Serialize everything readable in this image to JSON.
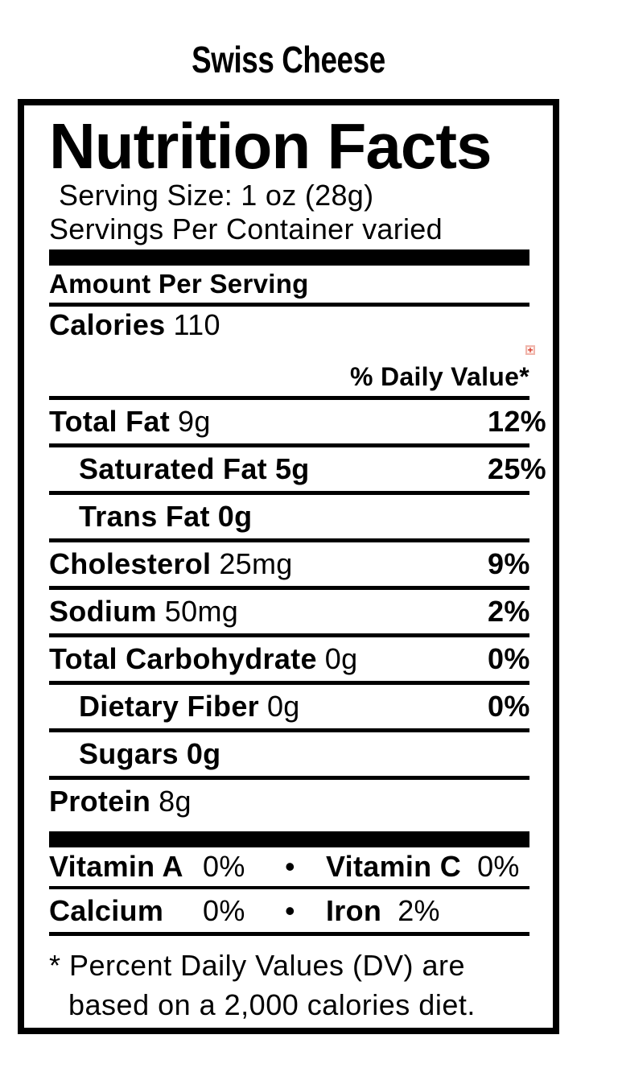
{
  "product_title": "Swiss Cheese",
  "label": {
    "title": "Nutrition Facts",
    "serving_size": "Serving Size: 1 oz (28g)",
    "servings_per_container": "Servings Per Container varied",
    "amount_per_serving": "Amount Per Serving",
    "calories": {
      "label": "Calories",
      "value": "110"
    },
    "daily_value_header": "% Daily Value*",
    "nutrients": [
      {
        "name": "Total Fat",
        "amount": "9g",
        "dv": "12%"
      },
      {
        "name": "Saturated Fat",
        "amount": "5g",
        "dv": "25%"
      },
      {
        "name": "Trans Fat",
        "amount": "0g",
        "dv": ""
      },
      {
        "name": "Cholesterol",
        "amount": "25mg",
        "dv": "9%"
      },
      {
        "name": "Sodium",
        "amount": "50mg",
        "dv": "2%"
      },
      {
        "name": "Total Carbohydrate",
        "amount": "0g",
        "dv": "0%"
      },
      {
        "name": "Dietary Fiber",
        "amount": "0g",
        "dv": "0%"
      },
      {
        "name": "Sugars",
        "amount": "0g",
        "dv": ""
      },
      {
        "name": "Protein",
        "amount": "8g",
        "dv": ""
      }
    ],
    "vitamins": {
      "row1": {
        "label1": "Vitamin A",
        "value1": "0%",
        "separator": "•",
        "label2": "Vitamin C",
        "value2": "0%"
      },
      "row2": {
        "label1": "Calcium",
        "value1": "0%",
        "separator": "•",
        "label2": "Iron",
        "value2": "2%"
      }
    },
    "footnote": {
      "line1": "* Percent Daily Values (DV) are",
      "line2": "based on a 2,000 calories diet."
    }
  },
  "icons": {
    "broken_image_glyph": "+"
  },
  "colors": {
    "text": "#000000",
    "background": "#ffffff",
    "broken_image_border": "#f0b5ab",
    "broken_image_glyph": "#d93a2b"
  }
}
